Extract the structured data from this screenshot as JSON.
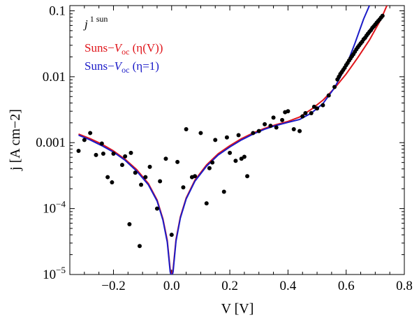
{
  "chart_data": {
    "type": "scatter",
    "title": "",
    "xlabel": "V [V]",
    "ylabel": "j [A cm−2]",
    "xlim": [
      -0.35,
      0.8
    ],
    "ylim": [
      1e-05,
      0.12
    ],
    "yscale": "log",
    "xticks": [
      {
        "value": -0.2,
        "label": "−0.2"
      },
      {
        "value": 0.0,
        "label": "0.0"
      },
      {
        "value": 0.2,
        "label": "0.2"
      },
      {
        "value": 0.4,
        "label": "0.4"
      },
      {
        "value": 0.6,
        "label": "0.6"
      },
      {
        "value": 0.8,
        "label": "0.8"
      }
    ],
    "yticks": [
      {
        "value": 1e-05,
        "base": "10",
        "exp": "−5"
      },
      {
        "value": 0.0001,
        "base": "10",
        "exp": "−4"
      },
      {
        "value": 0.001,
        "label": "0.001"
      },
      {
        "value": 0.01,
        "label": "0.01"
      },
      {
        "value": 0.1,
        "label": "0.1"
      }
    ],
    "legend_title": {
      "text": "j",
      "sup": "1 sun"
    },
    "legend": [
      {
        "name": "Suns−V_oc (η(V))",
        "prefix": "Suns−",
        "var": "V",
        "sub": "oc",
        "suffix": " (η(V))",
        "color": "#e0151b"
      },
      {
        "name": "Suns−V_oc (η=1)",
        "prefix": "Suns−",
        "var": "V",
        "sub": "oc",
        "suffix": " (η=1)",
        "color": "#1c1cc8"
      }
    ],
    "series": [
      {
        "name": "j 1 sun",
        "kind": "scatter",
        "color": "#000000",
        "x": [
          -0.32,
          -0.3,
          -0.28,
          -0.26,
          -0.24,
          -0.235,
          -0.22,
          -0.205,
          -0.2,
          -0.17,
          -0.16,
          -0.145,
          -0.14,
          -0.125,
          -0.11,
          -0.105,
          -0.09,
          -0.075,
          -0.05,
          -0.04,
          -0.02,
          0.0,
          0.02,
          0.04,
          0.05,
          0.07,
          0.08,
          0.1,
          0.12,
          0.13,
          0.14,
          0.15,
          0.18,
          0.19,
          0.2,
          0.22,
          0.23,
          0.24,
          0.25,
          0.26,
          0.28,
          0.3,
          0.32,
          0.34,
          0.35,
          0.36,
          0.38,
          0.39,
          0.4,
          0.42,
          0.44,
          0.45,
          0.46,
          0.48,
          0.49,
          0.5,
          0.52,
          0.54,
          0.56,
          0.57,
          0.575,
          0.58,
          0.585,
          0.59,
          0.595,
          0.6,
          0.605,
          0.61,
          0.615,
          0.62,
          0.625,
          0.63,
          0.635,
          0.64,
          0.645,
          0.65,
          0.655,
          0.66,
          0.665,
          0.67,
          0.675,
          0.68,
          0.685,
          0.69,
          0.695,
          0.7,
          0.705,
          0.71,
          0.715,
          0.72,
          0.725
        ],
        "y": [
          0.00075,
          0.0011,
          0.0014,
          0.00065,
          0.00097,
          0.00068,
          0.0003,
          0.00025,
          0.00068,
          0.00046,
          0.00062,
          5.8e-05,
          0.0007,
          0.00035,
          2.7e-05,
          0.00023,
          0.0003,
          0.00043,
          0.0001,
          0.00026,
          0.00057,
          4e-05,
          0.00051,
          0.00021,
          0.0016,
          0.0003,
          0.00031,
          0.0014,
          0.00012,
          0.00041,
          0.0005,
          0.0011,
          0.00018,
          0.0012,
          0.0007,
          0.00053,
          0.0013,
          0.00057,
          0.00061,
          0.00031,
          0.0014,
          0.0015,
          0.0019,
          0.0018,
          0.0024,
          0.0017,
          0.0022,
          0.0029,
          0.003,
          0.0016,
          0.0015,
          0.0025,
          0.0028,
          0.0028,
          0.0035,
          0.0033,
          0.0037,
          0.0052,
          0.007,
          0.0091,
          0.01,
          0.011,
          0.0118,
          0.0127,
          0.0137,
          0.015,
          0.0162,
          0.0176,
          0.019,
          0.0205,
          0.022,
          0.024,
          0.026,
          0.028,
          0.03,
          0.032,
          0.034,
          0.037,
          0.039,
          0.042,
          0.045,
          0.048,
          0.051,
          0.055,
          0.058,
          0.062,
          0.066,
          0.07,
          0.074,
          0.079,
          0.084
        ]
      },
      {
        "name": "Suns−V_oc (η(V))",
        "kind": "line",
        "color": "#e0151b",
        "x": [
          -0.32,
          -0.28,
          -0.24,
          -0.2,
          -0.16,
          -0.12,
          -0.08,
          -0.05,
          -0.03,
          -0.015,
          -0.005,
          0.0,
          0.005,
          0.015,
          0.03,
          0.05,
          0.08,
          0.12,
          0.16,
          0.2,
          0.24,
          0.28,
          0.32,
          0.36,
          0.4,
          0.44,
          0.48,
          0.52,
          0.56,
          0.6,
          0.64,
          0.68,
          0.72,
          0.74
        ],
        "y": [
          0.00135,
          0.00115,
          0.00095,
          0.00075,
          0.00056,
          0.00039,
          0.00024,
          0.000135,
          7e-05,
          3.3e-05,
          1.2e-05,
          9.5e-06,
          1.2e-05,
          3.4e-05,
          7.5e-05,
          0.000145,
          0.00027,
          0.00046,
          0.00068,
          0.0009,
          0.00115,
          0.0014,
          0.00165,
          0.00188,
          0.0021,
          0.00245,
          0.0032,
          0.0044,
          0.0067,
          0.011,
          0.0195,
          0.036,
          0.075,
          0.12
        ]
      },
      {
        "name": "Suns−V_oc (η=1)",
        "kind": "line",
        "color": "#1c1cc8",
        "x": [
          -0.32,
          -0.28,
          -0.24,
          -0.2,
          -0.16,
          -0.12,
          -0.08,
          -0.05,
          -0.03,
          -0.015,
          -0.005,
          0.0,
          0.005,
          0.015,
          0.03,
          0.05,
          0.08,
          0.12,
          0.16,
          0.2,
          0.24,
          0.28,
          0.32,
          0.36,
          0.4,
          0.44,
          0.48,
          0.52,
          0.56,
          0.6,
          0.63,
          0.66,
          0.68
        ],
        "y": [
          0.0013,
          0.0011,
          0.0009,
          0.00072,
          0.00054,
          0.00037,
          0.00023,
          0.00013,
          6.7e-05,
          3.1e-05,
          1.1e-05,
          9e-06,
          1.1e-05,
          3.2e-05,
          7.2e-05,
          0.00014,
          0.00026,
          0.00044,
          0.00065,
          0.00086,
          0.0011,
          0.00135,
          0.0016,
          0.00183,
          0.00203,
          0.00225,
          0.0028,
          0.0039,
          0.0068,
          0.0145,
          0.032,
          0.075,
          0.12
        ]
      }
    ]
  }
}
